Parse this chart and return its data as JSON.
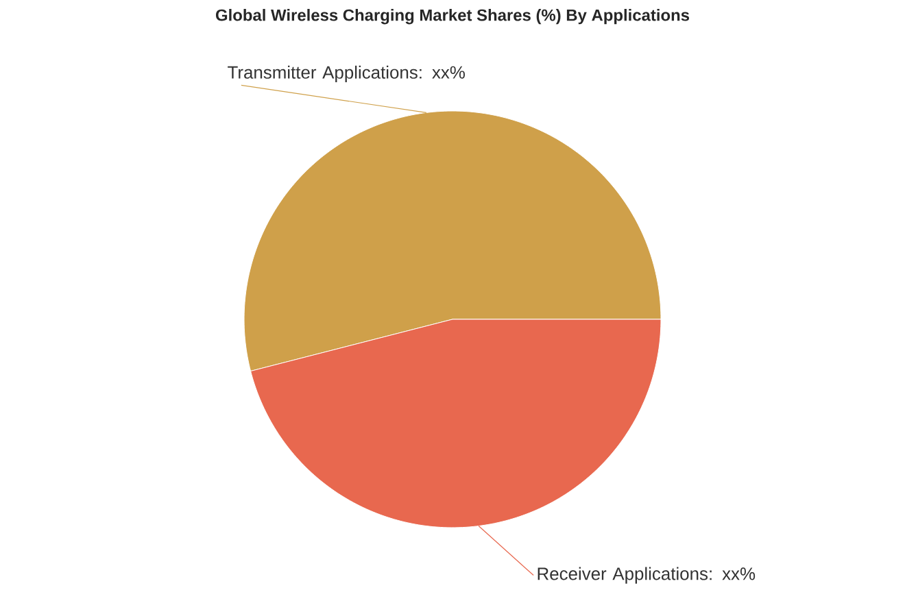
{
  "chart_data": {
    "type": "pie",
    "title": "Global Wireless Charging Market Shares (%) By Applications",
    "categories": [
      "Transmitter Applications: xx%",
      "Receiver Applications: xx%"
    ],
    "values": [
      54,
      46
    ],
    "colors": [
      "#cfa04a",
      "#e8684f"
    ]
  }
}
